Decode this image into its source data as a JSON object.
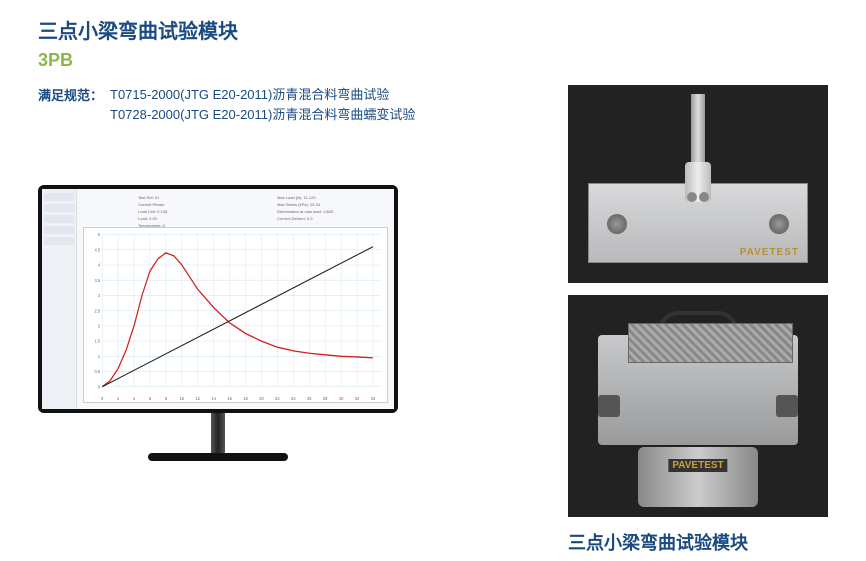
{
  "header": {
    "title_cn": "三点小梁弯曲试验模块",
    "title_en": "3PB"
  },
  "spec": {
    "label": "满足规范：",
    "lines": [
      "T0715-2000(JTG E20-2011)沥青混合料弯曲试验",
      "T0728-2000(JTG E20-2011)沥青混合料弯曲蠕变试验"
    ]
  },
  "monitor_software": {
    "sidebar_items": [
      "Test",
      "Config",
      "Set Point",
      "Data"
    ],
    "param_groups": [
      [
        "Test Ref: 01",
        "Current Phase: ",
        "Load Cell: 0.138",
        "Load: 0.00",
        "Temperature: 0"
      ],
      [
        "Max Load (N): 11.120",
        "Max Stress (kPa): 25.34",
        "Deformation at max load: 1.883",
        "Current Deform: 0.0"
      ]
    ],
    "chart": {
      "type": "line",
      "x_range": [
        0,
        35
      ],
      "y_range": [
        0,
        5
      ],
      "x_ticks": [
        0,
        2,
        4,
        6,
        8,
        10,
        12,
        14,
        16,
        18,
        20,
        22,
        24,
        26,
        28,
        30,
        32,
        34
      ],
      "y_ticks": [
        0,
        0.5,
        1.0,
        1.5,
        2.0,
        2.5,
        3.0,
        3.5,
        4.0,
        4.5,
        5.0
      ],
      "grid_color": "#cfe7f7",
      "background": "#ffffff",
      "series": [
        {
          "name": "red-curve",
          "color": "#d02020",
          "width": 1.2,
          "points": [
            [
              0,
              0
            ],
            [
              1,
              0.2
            ],
            [
              2,
              0.6
            ],
            [
              3,
              1.2
            ],
            [
              4,
              2.0
            ],
            [
              5,
              3.0
            ],
            [
              6,
              3.8
            ],
            [
              7,
              4.2
            ],
            [
              8,
              4.4
            ],
            [
              9,
              4.3
            ],
            [
              10,
              4.0
            ],
            [
              11,
              3.6
            ],
            [
              12,
              3.2
            ],
            [
              14,
              2.6
            ],
            [
              16,
              2.1
            ],
            [
              18,
              1.75
            ],
            [
              20,
              1.5
            ],
            [
              22,
              1.3
            ],
            [
              24,
              1.18
            ],
            [
              26,
              1.1
            ],
            [
              28,
              1.05
            ],
            [
              30,
              1.0
            ],
            [
              32,
              0.98
            ],
            [
              34,
              0.95
            ]
          ]
        },
        {
          "name": "black-line",
          "color": "#202020",
          "width": 1.0,
          "points": [
            [
              0,
              0
            ],
            [
              34,
              4.6
            ]
          ]
        }
      ]
    }
  },
  "equipment": {
    "brand": "PAVETEST",
    "fixture_color": "#c8c9cb",
    "background_color": "#1a1a1a"
  },
  "caption": "三点小梁弯曲试验模块",
  "colors": {
    "primary_blue": "#1a4a80",
    "accent_green": "#8ab84a",
    "brand_gold": "#b89030"
  }
}
